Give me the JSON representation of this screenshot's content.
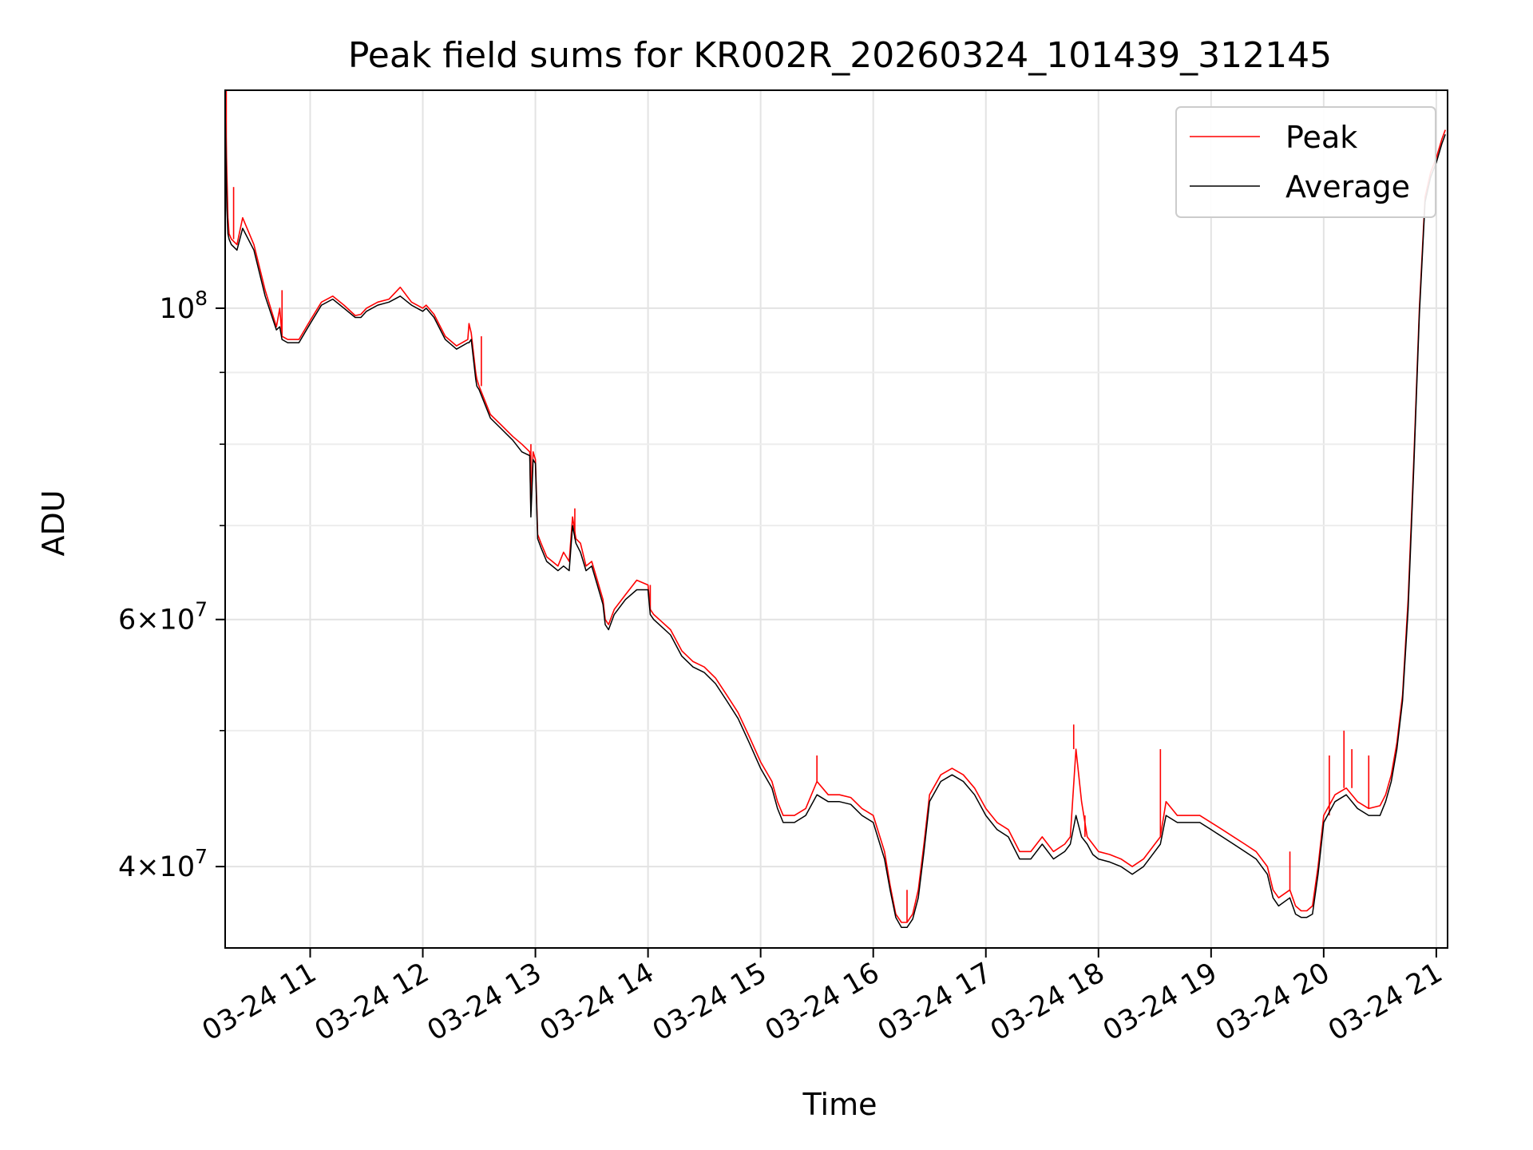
{
  "chart_data": {
    "type": "line",
    "title": "Peak field sums for KR002R_20260324_101439_312145",
    "xlabel": "Time",
    "ylabel": "ADU",
    "yscale": "log",
    "grid": true,
    "legend_position": "top-right",
    "x_unit": "hours on 2026-03-24",
    "xlim": [
      10.245,
      21.1
    ],
    "ylim": [
      35000000,
      143000000
    ],
    "x_ticks": [
      11,
      12,
      13,
      14,
      15,
      16,
      17,
      18,
      19,
      20,
      21
    ],
    "x_tick_labels": [
      "03-24 11",
      "03-24 12",
      "03-24 13",
      "03-24 14",
      "03-24 15",
      "03-24 16",
      "03-24 17",
      "03-24 18",
      "03-24 19",
      "03-24 20",
      "03-24 21"
    ],
    "y_major_ticks": [
      {
        "value": 40000000,
        "base": "4",
        "exponent": "7"
      },
      {
        "value": 60000000,
        "base": "6",
        "exponent": "7"
      },
      {
        "value": 100000000,
        "base": "10",
        "exponent": "8"
      }
    ],
    "y_minor_ticks": [
      50000000,
      70000000,
      80000000,
      90000000
    ],
    "series": [
      {
        "name": "Peak",
        "color": "#ff0000",
        "x": [
          10.245,
          10.26,
          10.27,
          10.28,
          10.3,
          10.35,
          10.4,
          10.5,
          10.6,
          10.7,
          10.73,
          10.75,
          10.8,
          10.9,
          11.0,
          11.1,
          11.2,
          11.3,
          11.4,
          11.45,
          11.5,
          11.6,
          11.7,
          11.8,
          11.9,
          12.0,
          12.03,
          12.1,
          12.2,
          12.3,
          12.4,
          12.41,
          12.43,
          12.47,
          12.48,
          12.5,
          12.6,
          12.7,
          12.8,
          12.88,
          12.95,
          12.96,
          12.98,
          13.0,
          13.02,
          13.05,
          13.1,
          13.2,
          13.25,
          13.3,
          13.33,
          13.36,
          13.4,
          13.45,
          13.5,
          13.55,
          13.6,
          13.62,
          13.65,
          13.7,
          13.8,
          13.9,
          14.0,
          14.02,
          14.05,
          14.1,
          14.2,
          14.3,
          14.4,
          14.5,
          14.6,
          14.7,
          14.8,
          14.9,
          15.0,
          15.1,
          15.15,
          15.2,
          15.3,
          15.4,
          15.5,
          15.6,
          15.7,
          15.8,
          15.9,
          16.0,
          16.1,
          16.15,
          16.2,
          16.25,
          16.3,
          16.35,
          16.4,
          16.45,
          16.5,
          16.6,
          16.7,
          16.8,
          16.9,
          17.0,
          17.1,
          17.2,
          17.3,
          17.4,
          17.5,
          17.6,
          17.7,
          17.75,
          17.8,
          17.85,
          17.9,
          17.95,
          18.0,
          18.1,
          18.2,
          18.3,
          18.4,
          18.5,
          18.55,
          18.6,
          18.7,
          18.8,
          18.9,
          19.0,
          19.1,
          19.2,
          19.3,
          19.4,
          19.5,
          19.55,
          19.6,
          19.7,
          19.75,
          19.8,
          19.85,
          19.9,
          19.95,
          20.0,
          20.1,
          20.2,
          20.3,
          20.4,
          20.5,
          20.55,
          20.6,
          20.65,
          20.7,
          20.75,
          20.8,
          20.85,
          20.9,
          20.95,
          21.0,
          21.05,
          21.08
        ],
        "y": [
          143000000,
          125000000,
          116000000,
          113000000,
          112000000,
          111000000,
          116000000,
          111000000,
          103000000,
          97000000,
          100000000,
          95500000,
          95000000,
          95000000,
          98000000,
          101000000,
          102000000,
          100500000,
          98800000,
          99000000,
          100000000,
          101000000,
          101500000,
          103500000,
          101000000,
          100000000,
          100500000,
          99000000,
          95500000,
          94000000,
          95000000,
          97500000,
          96000000,
          90000000,
          89000000,
          88000000,
          84000000,
          82500000,
          81000000,
          80000000,
          79000000,
          72000000,
          79000000,
          78000000,
          69000000,
          68000000,
          66500000,
          65500000,
          67000000,
          66000000,
          71000000,
          68500000,
          68000000,
          65500000,
          66000000,
          64000000,
          62000000,
          60000000,
          59500000,
          61000000,
          62500000,
          64000000,
          63500000,
          61000000,
          60500000,
          60000000,
          59000000,
          57000000,
          56000000,
          55500000,
          54500000,
          53000000,
          51500000,
          49500000,
          47500000,
          46000000,
          44500000,
          43500000,
          43500000,
          44000000,
          46000000,
          45000000,
          45000000,
          44800000,
          44000000,
          43500000,
          41000000,
          38800000,
          37000000,
          36500000,
          36500000,
          37000000,
          38500000,
          41500000,
          45000000,
          46500000,
          47000000,
          46500000,
          45500000,
          44000000,
          43000000,
          42500000,
          41000000,
          41000000,
          42000000,
          41000000,
          41500000,
          42000000,
          48500000,
          44500000,
          42000000,
          41500000,
          41000000,
          40800000,
          40500000,
          40000000,
          40500000,
          41500000,
          42000000,
          44500000,
          43500000,
          43500000,
          43500000,
          43000000,
          42500000,
          42000000,
          41500000,
          41000000,
          40000000,
          38500000,
          38000000,
          38500000,
          37500000,
          37200000,
          37200000,
          37500000,
          40000000,
          43500000,
          45000000,
          45500000,
          44500000,
          44000000,
          44200000,
          45000000,
          46500000,
          49000000,
          53000000,
          62000000,
          78000000,
          100000000,
          120000000,
          125000000,
          128000000,
          132000000,
          134000000
        ],
        "spikes": [
          {
            "x": 10.255,
            "y": 143000000
          },
          {
            "x": 10.32,
            "y": 122000000
          },
          {
            "x": 10.75,
            "y": 103000000
          },
          {
            "x": 12.52,
            "y": 95500000
          },
          {
            "x": 12.96,
            "y": 80000000
          },
          {
            "x": 13.35,
            "y": 72000000
          },
          {
            "x": 14.02,
            "y": 63500000
          },
          {
            "x": 15.5,
            "y": 48000000
          },
          {
            "x": 16.3,
            "y": 38500000
          },
          {
            "x": 17.78,
            "y": 50500000
          },
          {
            "x": 17.88,
            "y": 43500000
          },
          {
            "x": 18.55,
            "y": 48500000
          },
          {
            "x": 19.7,
            "y": 41000000
          },
          {
            "x": 20.05,
            "y": 48000000
          },
          {
            "x": 20.18,
            "y": 50000000
          },
          {
            "x": 20.25,
            "y": 48500000
          },
          {
            "x": 20.4,
            "y": 48000000
          }
        ]
      },
      {
        "name": "Average",
        "color": "#000000",
        "x": [
          10.245,
          10.26,
          10.27,
          10.28,
          10.3,
          10.35,
          10.4,
          10.5,
          10.6,
          10.7,
          10.73,
          10.75,
          10.8,
          10.9,
          11.0,
          11.1,
          11.2,
          11.3,
          11.4,
          11.45,
          11.5,
          11.6,
          11.7,
          11.8,
          11.9,
          12.0,
          12.03,
          12.1,
          12.2,
          12.3,
          12.4,
          12.41,
          12.43,
          12.47,
          12.48,
          12.5,
          12.6,
          12.7,
          12.8,
          12.88,
          12.95,
          12.96,
          12.98,
          13.0,
          13.02,
          13.05,
          13.1,
          13.2,
          13.25,
          13.3,
          13.33,
          13.36,
          13.4,
          13.45,
          13.5,
          13.55,
          13.6,
          13.62,
          13.65,
          13.7,
          13.8,
          13.9,
          14.0,
          14.02,
          14.05,
          14.1,
          14.2,
          14.3,
          14.4,
          14.5,
          14.6,
          14.7,
          14.8,
          14.9,
          15.0,
          15.1,
          15.15,
          15.2,
          15.3,
          15.4,
          15.5,
          15.6,
          15.7,
          15.8,
          15.9,
          16.0,
          16.1,
          16.15,
          16.2,
          16.25,
          16.3,
          16.35,
          16.4,
          16.45,
          16.5,
          16.6,
          16.7,
          16.8,
          16.9,
          17.0,
          17.1,
          17.2,
          17.3,
          17.4,
          17.5,
          17.6,
          17.7,
          17.75,
          17.8,
          17.85,
          17.9,
          17.95,
          18.0,
          18.1,
          18.2,
          18.3,
          18.4,
          18.5,
          18.55,
          18.6,
          18.7,
          18.8,
          18.9,
          19.0,
          19.1,
          19.2,
          19.3,
          19.4,
          19.5,
          19.55,
          19.6,
          19.7,
          19.75,
          19.8,
          19.85,
          19.9,
          19.95,
          20.0,
          20.1,
          20.2,
          20.3,
          20.4,
          20.5,
          20.55,
          20.6,
          20.65,
          20.7,
          20.75,
          20.8,
          20.85,
          20.9,
          20.95,
          21.0,
          21.05,
          21.08
        ],
        "y": [
          139000000,
          118000000,
          113000000,
          112000000,
          111000000,
          110000000,
          114000000,
          110000000,
          102000000,
          96500000,
          97000000,
          95000000,
          94500000,
          94500000,
          97500000,
          100500000,
          101500000,
          100000000,
          98500000,
          98500000,
          99500000,
          100500000,
          101000000,
          102000000,
          100500000,
          99500000,
          100000000,
          98500000,
          95000000,
          93500000,
          94500000,
          94500000,
          95000000,
          89000000,
          88000000,
          87500000,
          83500000,
          82000000,
          80500000,
          79000000,
          78500000,
          71000000,
          78000000,
          77500000,
          68500000,
          67500000,
          66000000,
          65000000,
          65500000,
          65000000,
          70000000,
          68000000,
          67000000,
          65000000,
          65500000,
          63500000,
          61500000,
          59500000,
          59000000,
          60500000,
          62000000,
          63000000,
          63000000,
          60500000,
          60000000,
          59500000,
          58500000,
          56500000,
          55500000,
          55000000,
          54000000,
          52500000,
          51000000,
          49000000,
          47000000,
          45500000,
          44000000,
          43000000,
          43000000,
          43500000,
          45000000,
          44500000,
          44500000,
          44300000,
          43500000,
          43000000,
          40500000,
          38500000,
          36800000,
          36200000,
          36200000,
          36700000,
          38000000,
          41000000,
          44500000,
          46000000,
          46500000,
          46000000,
          45000000,
          43500000,
          42500000,
          42000000,
          40500000,
          40500000,
          41500000,
          40500000,
          41000000,
          41500000,
          43500000,
          42000000,
          41500000,
          40800000,
          40500000,
          40300000,
          40000000,
          39500000,
          40000000,
          41000000,
          41500000,
          43500000,
          43000000,
          43000000,
          43000000,
          42500000,
          42000000,
          41500000,
          41000000,
          40500000,
          39500000,
          38000000,
          37500000,
          38000000,
          37000000,
          36800000,
          36800000,
          37000000,
          39500000,
          43000000,
          44500000,
          45000000,
          44000000,
          43500000,
          43500000,
          44500000,
          46000000,
          48500000,
          52500000,
          61000000,
          77000000,
          99000000,
          119000000,
          124000000,
          127000000,
          131000000,
          133000000
        ]
      }
    ]
  }
}
